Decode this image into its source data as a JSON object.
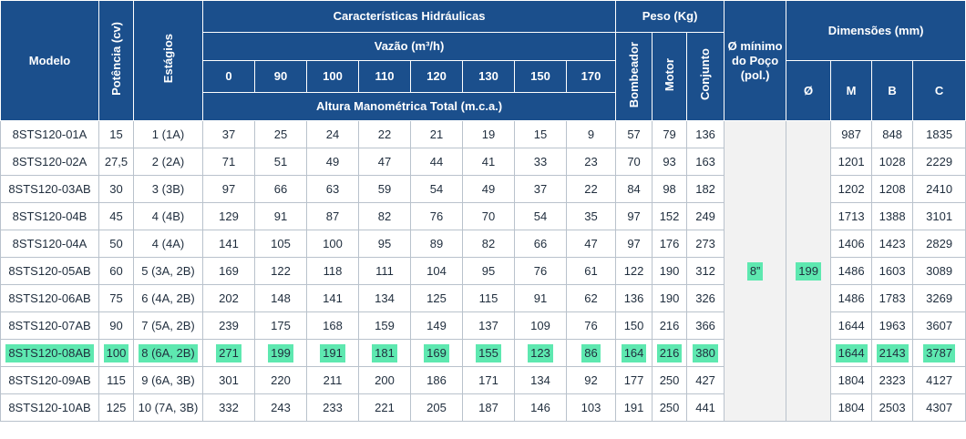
{
  "header": {
    "modelo": "Modelo",
    "potencia": "Potência (cv)",
    "estagios": "Estágios",
    "caracteristicas": "Características Hidráulicas",
    "vazao": "Vazão (m³/h)",
    "flows": [
      "0",
      "90",
      "100",
      "110",
      "120",
      "130",
      "150",
      "170"
    ],
    "altura": "Altura Manométrica Total (m.c.a.)",
    "peso": "Peso (Kg)",
    "bombeador": "Bombeador",
    "motor": "Motor",
    "conjunto": "Conjunto",
    "poco": "Ø mínimo do Poço (pol.)",
    "dimensoes": "Dimensões (mm)",
    "dim_cols": [
      "Ø",
      "M",
      "B",
      "C"
    ]
  },
  "shared": {
    "poco_value": "8”",
    "diam_value": "199"
  },
  "highlight_color": "#5ee8b0",
  "header_color": "#1b4f8c",
  "rows": [
    {
      "modelo": "8STS120-01A",
      "potencia": "15",
      "estagios": "1 (1A)",
      "heads": [
        "37",
        "25",
        "24",
        "22",
        "21",
        "19",
        "15",
        "9"
      ],
      "peso": [
        "57",
        "79",
        "136"
      ],
      "dims": [
        "987",
        "848",
        "1835"
      ]
    },
    {
      "modelo": "8STS120-02A",
      "potencia": "27,5",
      "estagios": "2 (2A)",
      "heads": [
        "71",
        "51",
        "49",
        "47",
        "44",
        "41",
        "33",
        "23"
      ],
      "peso": [
        "70",
        "93",
        "163"
      ],
      "dims": [
        "1201",
        "1028",
        "2229"
      ]
    },
    {
      "modelo": "8STS120-03AB",
      "potencia": "30",
      "estagios": "3 (3B)",
      "heads": [
        "97",
        "66",
        "63",
        "59",
        "54",
        "49",
        "37",
        "22"
      ],
      "peso": [
        "84",
        "98",
        "182"
      ],
      "dims": [
        "1202",
        "1208",
        "2410"
      ]
    },
    {
      "modelo": "8STS120-04B",
      "potencia": "45",
      "estagios": "4 (4B)",
      "heads": [
        "129",
        "91",
        "87",
        "82",
        "76",
        "70",
        "54",
        "35"
      ],
      "peso": [
        "97",
        "152",
        "249"
      ],
      "dims": [
        "1713",
        "1388",
        "3101"
      ]
    },
    {
      "modelo": "8STS120-04A",
      "potencia": "50",
      "estagios": "4 (4A)",
      "heads": [
        "141",
        "105",
        "100",
        "95",
        "89",
        "82",
        "66",
        "47"
      ],
      "peso": [
        "97",
        "176",
        "273"
      ],
      "dims": [
        "1406",
        "1423",
        "2829"
      ]
    },
    {
      "modelo": "8STS120-05AB",
      "potencia": "60",
      "estagios": "5 (3A, 2B)",
      "heads": [
        "169",
        "122",
        "118",
        "111",
        "104",
        "95",
        "76",
        "61"
      ],
      "peso": [
        "122",
        "190",
        "312"
      ],
      "dims": [
        "1486",
        "1603",
        "3089"
      ]
    },
    {
      "modelo": "8STS120-06AB",
      "potencia": "75",
      "estagios": "6 (4A, 2B)",
      "heads": [
        "202",
        "148",
        "141",
        "134",
        "125",
        "115",
        "91",
        "62"
      ],
      "peso": [
        "136",
        "190",
        "326"
      ],
      "dims": [
        "1486",
        "1783",
        "3269"
      ]
    },
    {
      "modelo": "8STS120-07AB",
      "potencia": "90",
      "estagios": "7 (5A, 2B)",
      "heads": [
        "239",
        "175",
        "168",
        "159",
        "149",
        "137",
        "109",
        "76"
      ],
      "peso": [
        "150",
        "216",
        "366"
      ],
      "dims": [
        "1644",
        "1963",
        "3607"
      ]
    },
    {
      "modelo": "8STS120-08AB",
      "potencia": "100",
      "estagios": "8 (6A, 2B)",
      "heads": [
        "271",
        "199",
        "191",
        "181",
        "169",
        "155",
        "123",
        "86"
      ],
      "peso": [
        "164",
        "216",
        "380"
      ],
      "dims": [
        "1644",
        "2143",
        "3787"
      ],
      "highlighted": true
    },
    {
      "modelo": "8STS120-09AB",
      "potencia": "115",
      "estagios": "9 (6A, 3B)",
      "heads": [
        "301",
        "220",
        "211",
        "200",
        "186",
        "171",
        "134",
        "92"
      ],
      "peso": [
        "177",
        "250",
        "427"
      ],
      "dims": [
        "1804",
        "2323",
        "4127"
      ]
    },
    {
      "modelo": "8STS120-10AB",
      "potencia": "125",
      "estagios": "10 (7A, 3B)",
      "heads": [
        "332",
        "243",
        "233",
        "221",
        "205",
        "187",
        "146",
        "103"
      ],
      "peso": [
        "191",
        "250",
        "441"
      ],
      "dims": [
        "1804",
        "2503",
        "4307"
      ]
    }
  ]
}
